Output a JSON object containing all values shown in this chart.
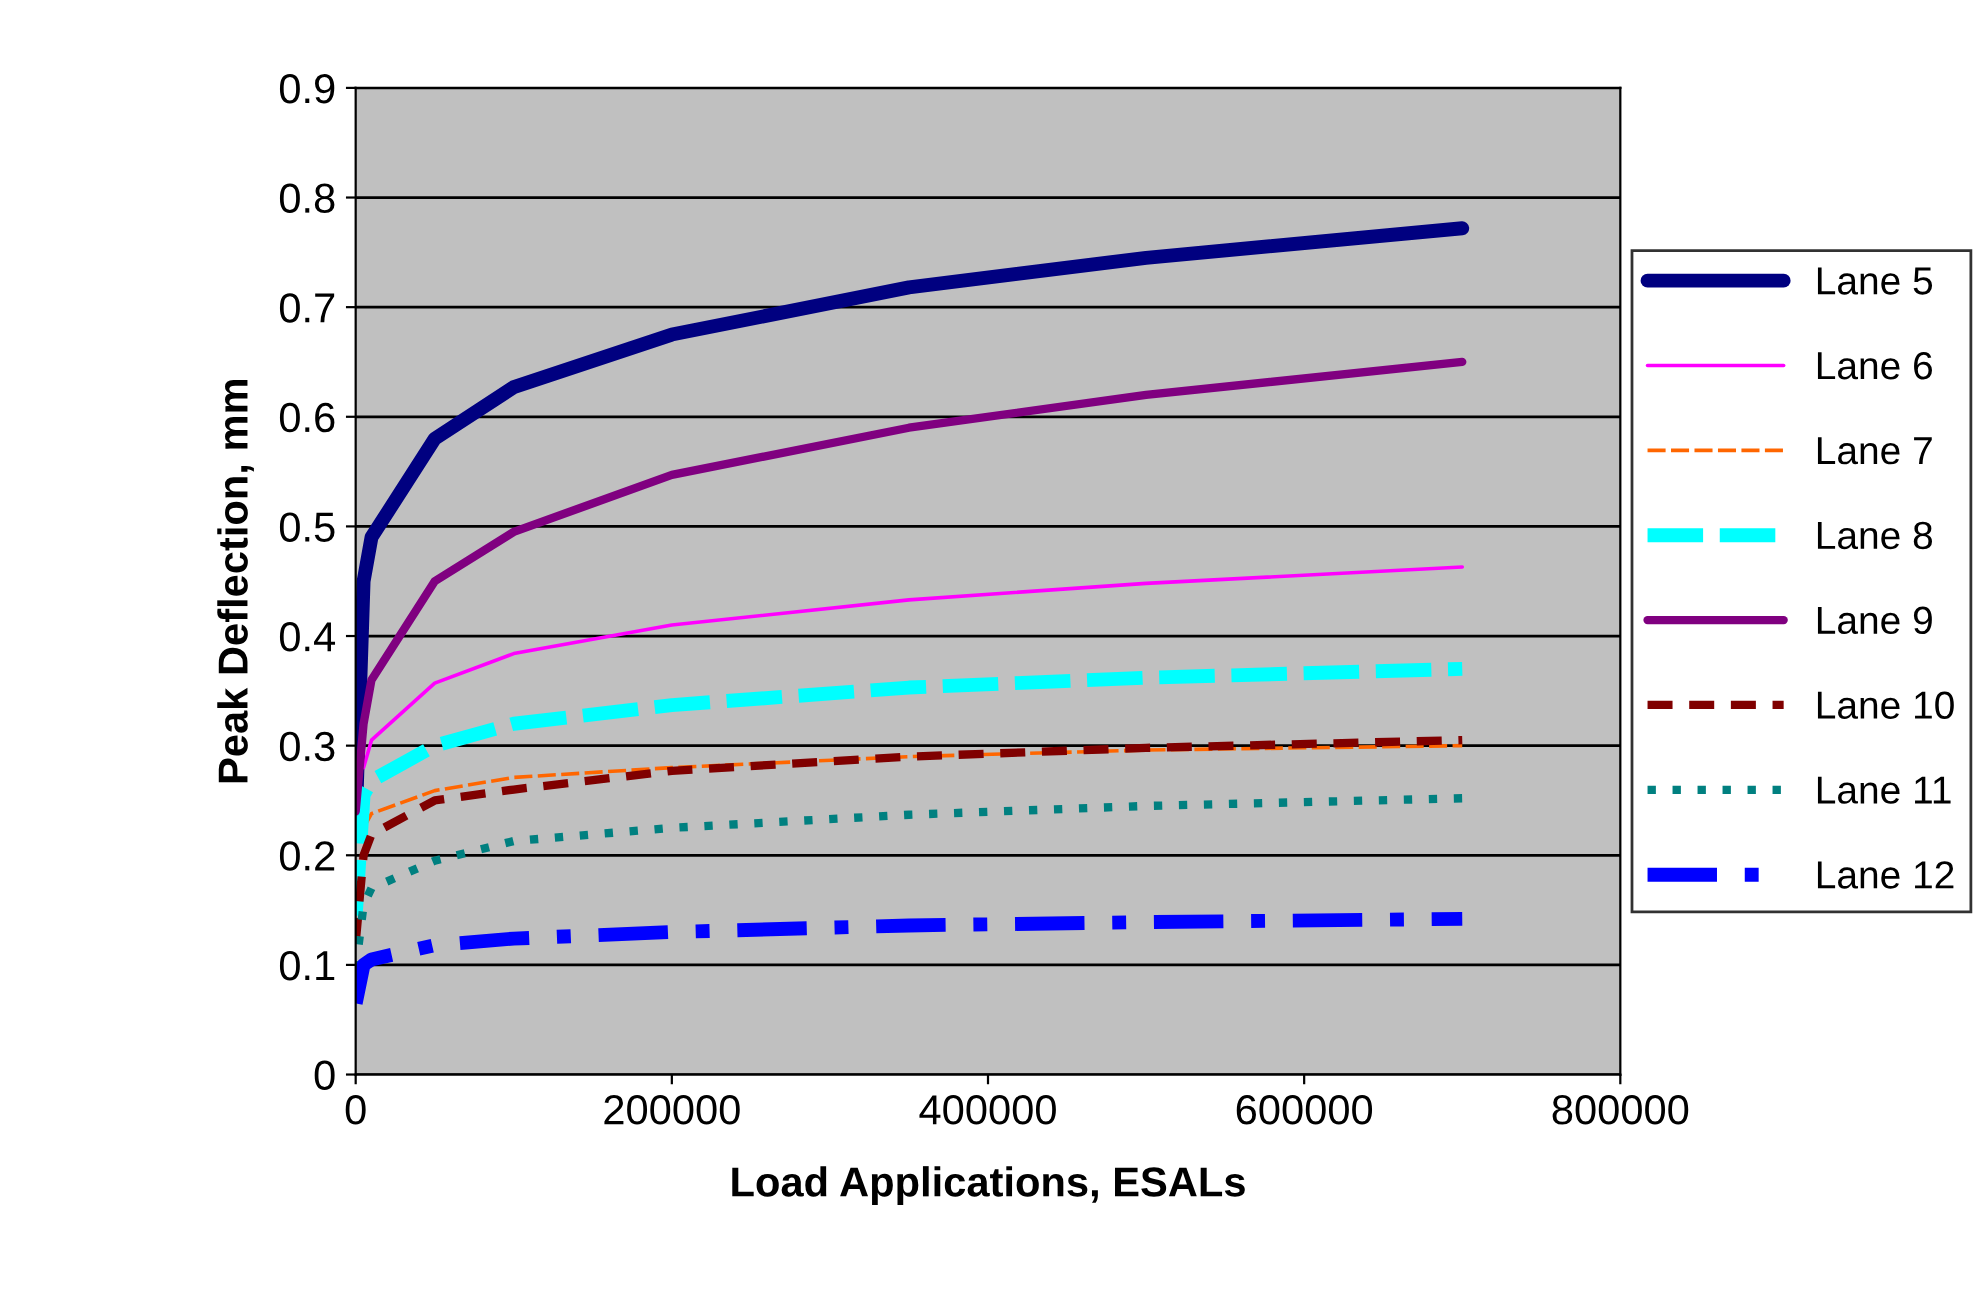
{
  "chart_data": {
    "type": "line",
    "xlabel": "Load Applications, ESALs",
    "ylabel": "Peak Deflection, mm",
    "x": [
      0,
      5000,
      10000,
      50000,
      100000,
      200000,
      350000,
      500000,
      700000
    ],
    "xlim": [
      0,
      800000
    ],
    "xticks": [
      0,
      200000,
      400000,
      600000,
      800000
    ],
    "ylim": [
      0,
      0.9
    ],
    "yticks": [
      0,
      0.1,
      0.2,
      0.3,
      0.4,
      0.5,
      0.6,
      0.7,
      0.8,
      0.9
    ],
    "grid": "y",
    "legend": "right",
    "marker": "none",
    "series": [
      {
        "name": "Lane 5",
        "color": "#000080",
        "line_style": "solid",
        "values": [
          0.23,
          0.45,
          0.49,
          0.58,
          0.627,
          0.675,
          0.718,
          0.745,
          0.772
        ]
      },
      {
        "name": "Lane 6",
        "color": "#ff00ff",
        "line_style": "solid",
        "values": [
          null,
          0.28,
          0.305,
          0.357,
          0.384,
          0.41,
          0.433,
          0.448,
          0.463
        ]
      },
      {
        "name": "Lane 7",
        "color": "#ff6600",
        "line_style": "dashed",
        "values": [
          null,
          0.225,
          0.238,
          0.259,
          0.271,
          0.28,
          0.29,
          0.296,
          0.3
        ]
      },
      {
        "name": "Lane 8",
        "color": "#00ffff",
        "line_style": "dashed",
        "values": [
          0.145,
          0.255,
          0.268,
          0.3,
          0.32,
          0.337,
          0.353,
          0.362,
          0.37
        ]
      },
      {
        "name": "Lane 9",
        "color": "#800080",
        "line_style": "solid",
        "values": [
          0.24,
          0.32,
          0.36,
          0.45,
          0.495,
          0.547,
          0.59,
          0.62,
          0.65
        ]
      },
      {
        "name": "Lane 10",
        "color": "#800000",
        "line_style": "dashed",
        "values": [
          0.12,
          0.2,
          0.219,
          0.25,
          0.26,
          0.277,
          0.29,
          0.298,
          0.305
        ]
      },
      {
        "name": "Lane 11",
        "color": "#008080",
        "line_style": "dotted",
        "values": [
          0.096,
          0.155,
          0.17,
          0.195,
          0.213,
          0.225,
          0.237,
          0.245,
          0.252
        ]
      },
      {
        "name": "Lane 12",
        "color": "#0000ff",
        "line_style": "dashed",
        "values": [
          0.065,
          0.1,
          0.105,
          0.118,
          0.124,
          0.13,
          0.136,
          0.139,
          0.142
        ]
      }
    ]
  }
}
